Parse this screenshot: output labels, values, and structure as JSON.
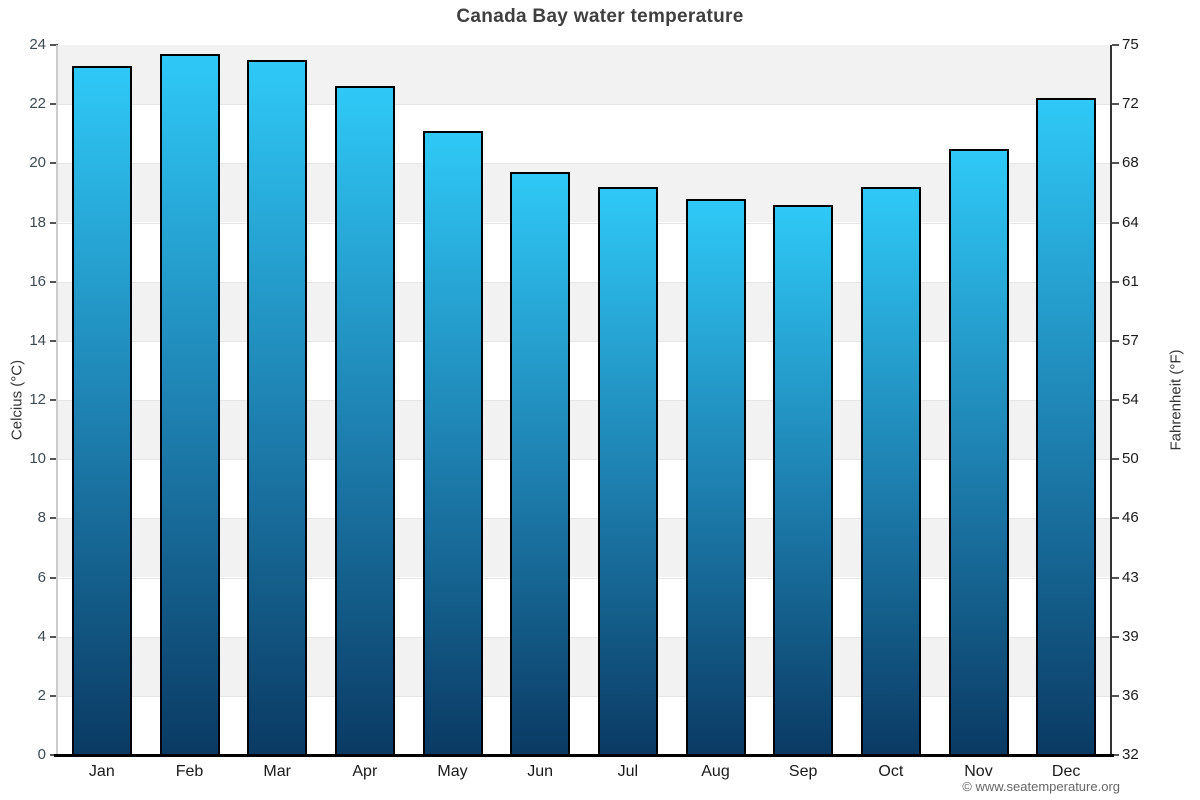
{
  "page": {
    "copyright": "© www.seatemperature.org"
  },
  "chart_data": {
    "type": "bar",
    "title": "Canada Bay water temperature",
    "categories": [
      "Jan",
      "Feb",
      "Mar",
      "Apr",
      "May",
      "Jun",
      "Jul",
      "Aug",
      "Sep",
      "Oct",
      "Nov",
      "Dec"
    ],
    "values": [
      23.3,
      23.7,
      23.5,
      22.6,
      21.1,
      19.7,
      19.2,
      18.8,
      18.6,
      19.2,
      20.5,
      22.2
    ],
    "unit": "°C",
    "ylabel_left": "Celcius (°C)",
    "ylabel_right": "Fahrenheit (°F)",
    "ylim": [
      0,
      24
    ],
    "yticks_celsius": [
      24,
      22,
      20,
      18,
      16,
      14,
      12,
      10,
      8,
      6,
      4,
      2,
      0
    ],
    "yticks_fahrenheit": [
      75,
      72,
      68,
      64,
      61,
      57,
      54,
      50,
      46,
      43,
      39,
      36,
      32
    ],
    "grid": "horizontal alternating 2°C bands, gray starting at top (24-22)",
    "legend": "none",
    "colors": {
      "bar_top": "#2fc9f7",
      "bar_mid": "#1e82b2",
      "bar_bottom": "#0a3a63",
      "bar_border": "#000000",
      "band_gray": "#f2f2f2",
      "band_white": "#ffffff",
      "gridline": "#e6e6e6",
      "axis_line_left": "#cccccc",
      "axis_line_right": "#333333",
      "axis_line_bottom": "#000000",
      "title_color": "#3f3f3f",
      "tick_label_left_color": "#3c4a52",
      "tick_label_right_color": "#1a1a1a",
      "month_label_color": "#1a1a1a",
      "copyright_color": "#666666"
    }
  }
}
